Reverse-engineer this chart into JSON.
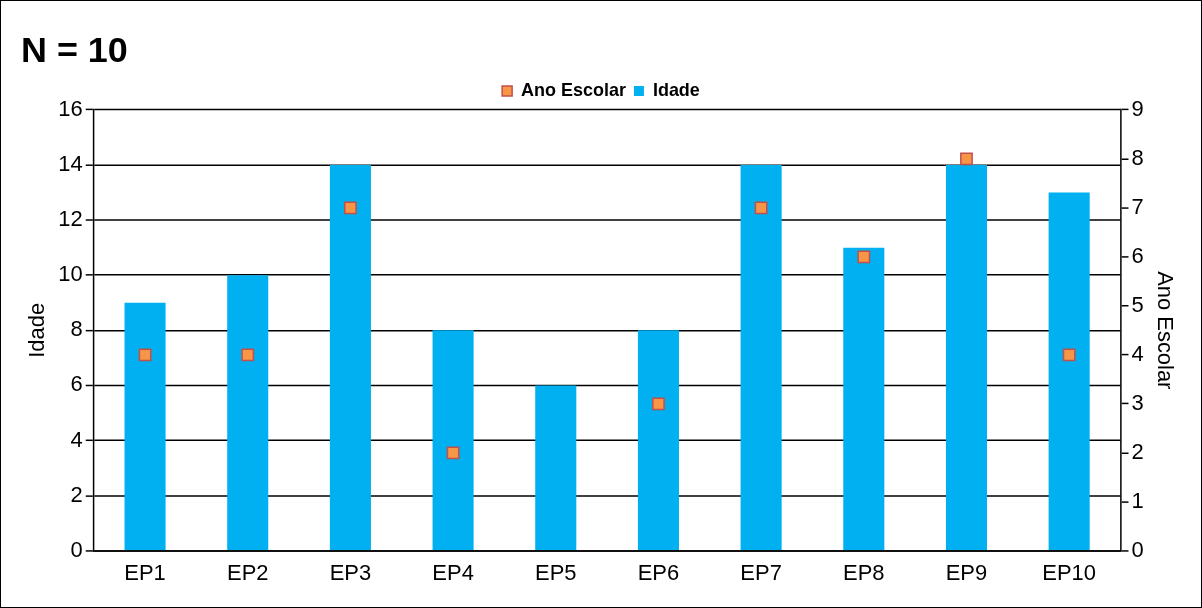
{
  "chart_data": {
    "type": "bar",
    "title": "N = 10",
    "ylabel": "Idade",
    "y2label": "Ano Escolar",
    "categories": [
      "EP1",
      "EP2",
      "EP3",
      "EP4",
      "EP5",
      "EP6",
      "EP7",
      "EP8",
      "EP9",
      "EP10"
    ],
    "series": [
      {
        "name": "Idade",
        "color": "#00b0f0",
        "values": [
          9,
          10,
          14,
          8,
          6,
          8,
          14,
          11,
          14,
          13
        ]
      },
      {
        "name": "Ano Escolar",
        "type": "scatter",
        "axis": "y2",
        "color": "#f79646",
        "values": [
          4,
          4,
          7,
          2,
          null,
          3,
          7,
          6,
          8,
          4
        ]
      }
    ],
    "ylim": [
      0,
      16
    ],
    "yticks": [
      0,
      2,
      4,
      6,
      8,
      10,
      12,
      14,
      16
    ],
    "y2lim": [
      0,
      9
    ],
    "y2ticks": [
      0,
      1,
      2,
      3,
      4,
      5,
      6,
      7,
      8,
      9
    ],
    "grid": "y",
    "legend": "top",
    "marker": "square"
  }
}
